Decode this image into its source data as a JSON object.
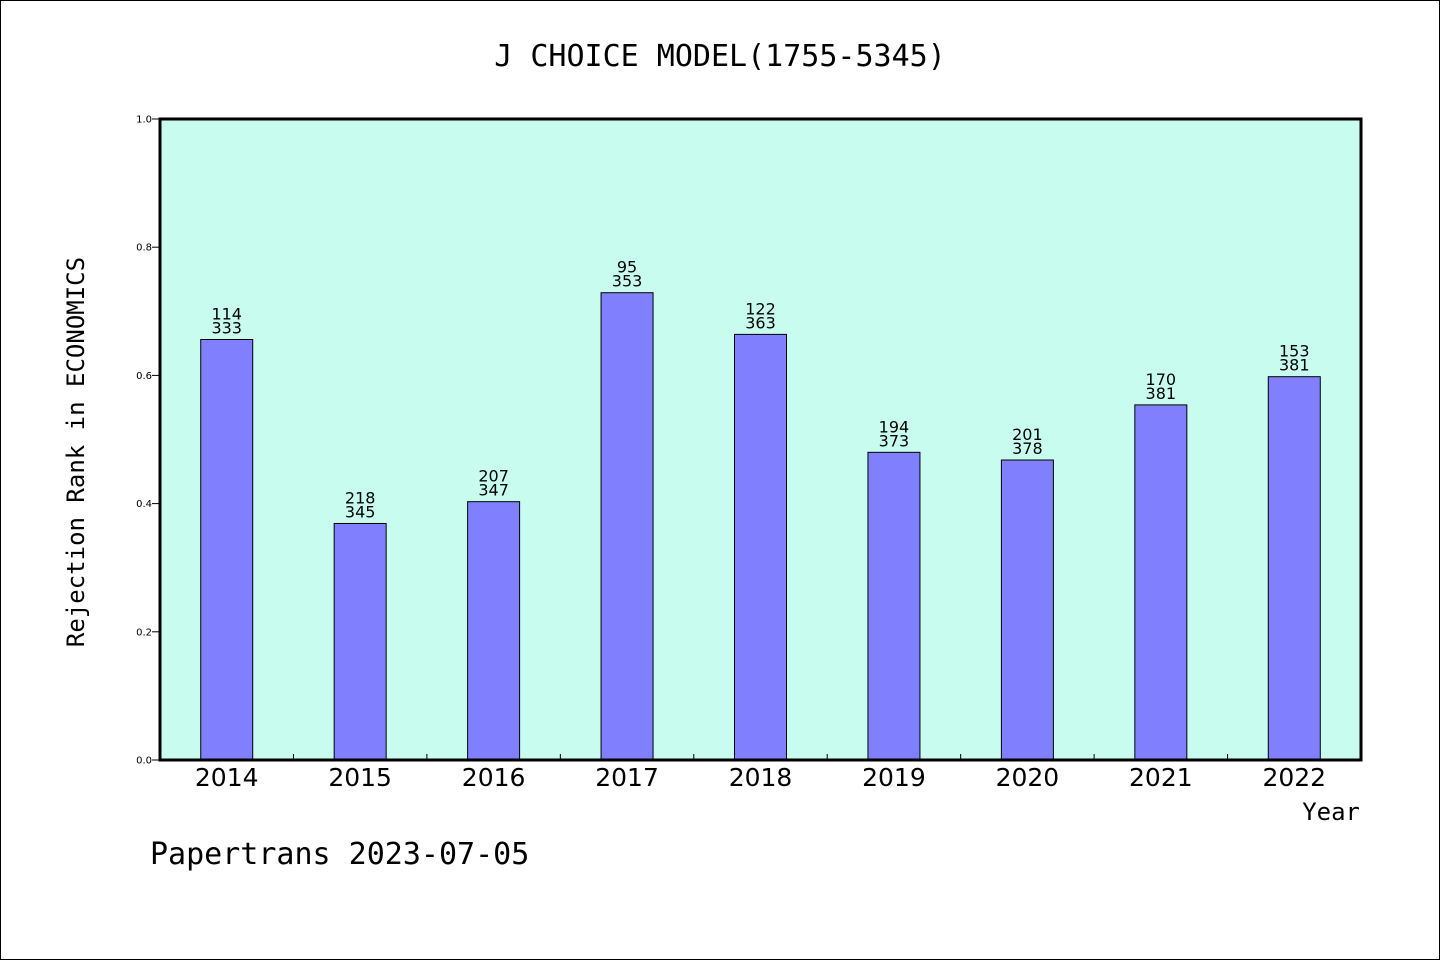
{
  "chart_data": {
    "type": "bar",
    "title": "J CHOICE MODEL(1755-5345)",
    "xlabel": "Year",
    "ylabel": "Rejection Rank in ECONOMICS",
    "ylim": [
      0,
      1.0
    ],
    "yticks": [
      "0.0",
      "0.2",
      "0.4",
      "0.6",
      "0.8",
      "1.0"
    ],
    "categories": [
      "2014",
      "2015",
      "2016",
      "2017",
      "2018",
      "2019",
      "2020",
      "2021",
      "2022"
    ],
    "values": [
      0.656,
      0.369,
      0.403,
      0.729,
      0.664,
      0.48,
      0.468,
      0.554,
      0.598
    ],
    "labels_top": [
      "114",
      "218",
      "207",
      "95",
      "122",
      "194",
      "201",
      "170",
      "153"
    ],
    "labels_bottom": [
      "333",
      "345",
      "347",
      "353",
      "363",
      "373",
      "378",
      "381",
      "381"
    ],
    "colors": {
      "plot_background": "#c8fcee",
      "bar_fill": "#8080ff",
      "bar_stroke": "#000000"
    },
    "grid": false,
    "legend": "none"
  },
  "footer": {
    "text": "Papertrans 2023-07-05"
  }
}
